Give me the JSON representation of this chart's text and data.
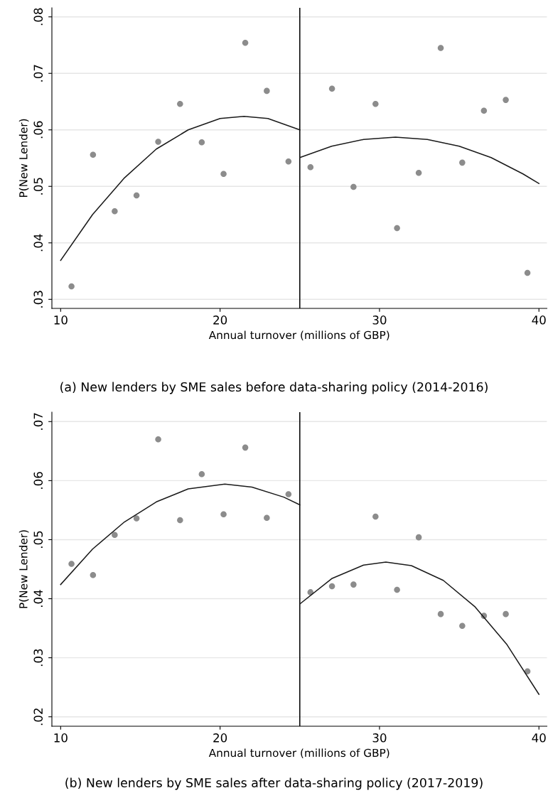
{
  "chart_data": [
    {
      "type": "scatter",
      "xlabel": "Annual turnover (millions of GBP)",
      "ylabel": "P(New Lender)",
      "annotations": [
        "(a) New lenders by SME sales before data-sharing policy (2014-2016)"
      ],
      "xlim": [
        9.45,
        40.5
      ],
      "xticks": [
        10,
        20,
        30,
        40
      ],
      "ylim": [
        0.0284,
        0.0816
      ],
      "yticks": [
        {
          "value": 0.03,
          "label": ".03"
        },
        {
          "value": 0.04,
          "label": ".04"
        },
        {
          "value": 0.05,
          "label": ".05"
        },
        {
          "value": 0.06,
          "label": ".06"
        },
        {
          "value": 0.07,
          "label": ".07"
        },
        {
          "value": 0.08,
          "label": ".08"
        }
      ],
      "grid": "y",
      "marker": "circle",
      "ref_lines": [
        {
          "axis": "x",
          "value": 25,
          "color": "#000000"
        }
      ],
      "series": [
        {
          "color": "#8c8c8c",
          "x": [
            10.68,
            12.03,
            13.39,
            14.76,
            16.12,
            17.49,
            18.85,
            20.22,
            21.58,
            22.93,
            24.29,
            25.67,
            27.02,
            28.37,
            29.75,
            31.1,
            32.46,
            33.84,
            35.19,
            36.55,
            37.92,
            39.28
          ],
          "values": [
            0.0323,
            0.0556,
            0.0456,
            0.0484,
            0.0579,
            0.0646,
            0.0578,
            0.0522,
            0.0754,
            0.0669,
            0.0544,
            0.0534,
            0.0673,
            0.0499,
            0.0646,
            0.0426,
            0.0524,
            0.0745,
            0.0542,
            0.0634,
            0.0653,
            0.0347
          ]
        },
        {
          "type": "line",
          "color": "#1a1a1a",
          "marker": "none",
          "x": [
            10,
            12,
            14,
            16,
            18,
            20,
            21.5,
            23,
            25
          ],
          "values": [
            0.0369,
            0.045,
            0.0515,
            0.0566,
            0.06,
            0.062,
            0.0624,
            0.062,
            0.06
          ]
        },
        {
          "type": "line",
          "color": "#1a1a1a",
          "marker": "none",
          "x": [
            25,
            27,
            29,
            31,
            33,
            35,
            37,
            39,
            40
          ],
          "values": [
            0.0551,
            0.0571,
            0.0583,
            0.0587,
            0.0583,
            0.0571,
            0.0551,
            0.0522,
            0.0505
          ]
        }
      ]
    },
    {
      "type": "scatter",
      "xlabel": "Annual turnover (millions of GBP)",
      "ylabel": "P(New Lender)",
      "annotations": [
        "(b) New lenders by SME sales after data-sharing policy (2017-2019)"
      ],
      "xlim": [
        9.45,
        40.5
      ],
      "xticks": [
        10,
        20,
        30,
        40
      ],
      "ylim": [
        0.0184,
        0.0716
      ],
      "yticks": [
        {
          "value": 0.02,
          "label": ".02"
        },
        {
          "value": 0.03,
          "label": ".03"
        },
        {
          "value": 0.04,
          "label": ".04"
        },
        {
          "value": 0.05,
          "label": ".05"
        },
        {
          "value": 0.06,
          "label": ".06"
        },
        {
          "value": 0.07,
          "label": ".07"
        }
      ],
      "grid": "y",
      "marker": "circle",
      "ref_lines": [
        {
          "axis": "x",
          "value": 25,
          "color": "#000000"
        }
      ],
      "series": [
        {
          "color": "#8c8c8c",
          "x": [
            10.68,
            12.03,
            13.39,
            14.76,
            16.12,
            17.49,
            18.85,
            20.22,
            21.58,
            22.93,
            24.29,
            25.67,
            27.02,
            28.37,
            29.75,
            31.1,
            32.46,
            33.84,
            35.19,
            36.55,
            37.92,
            39.28
          ],
          "values": [
            0.0459,
            0.044,
            0.0508,
            0.0536,
            0.067,
            0.0533,
            0.0611,
            0.0543,
            0.0656,
            0.0537,
            0.0577,
            0.0411,
            0.0421,
            0.0424,
            0.0539,
            0.0415,
            0.0504,
            0.0374,
            0.0354,
            0.0371,
            0.0374,
            0.0277
          ]
        },
        {
          "type": "line",
          "color": "#1a1a1a",
          "marker": "none",
          "x": [
            10,
            12,
            14,
            16,
            18,
            20.3,
            22,
            24,
            25
          ],
          "values": [
            0.0424,
            0.0484,
            0.053,
            0.0564,
            0.0586,
            0.0594,
            0.0589,
            0.0572,
            0.0559
          ]
        },
        {
          "type": "line",
          "color": "#1a1a1a",
          "marker": "none",
          "x": [
            25,
            27,
            29,
            30.4,
            32,
            34,
            36,
            38,
            40
          ],
          "values": [
            0.0391,
            0.0434,
            0.0457,
            0.0462,
            0.0456,
            0.0431,
            0.0386,
            0.0322,
            0.0238
          ]
        }
      ]
    }
  ]
}
